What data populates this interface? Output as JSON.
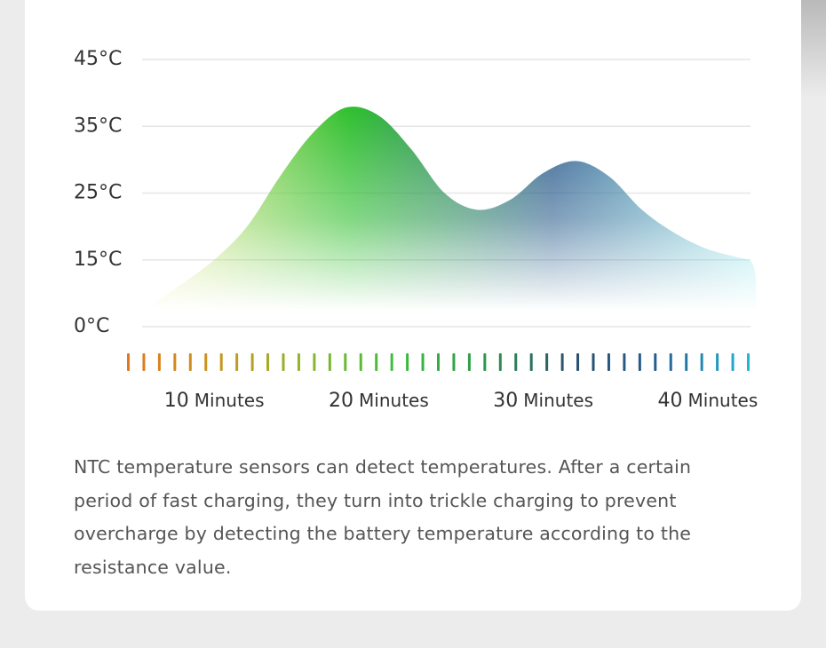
{
  "chart_data": {
    "type": "area",
    "x": [
      6,
      8,
      10,
      12,
      14,
      16,
      18,
      20,
      22,
      24,
      26,
      28,
      30,
      32,
      34,
      36,
      38,
      40,
      42.5
    ],
    "series": [
      {
        "color": [
          "#f3ea86",
          "#2fbf2f",
          "#2f5f8f",
          "#8fe6ea"
        ],
        "values": [
          4.5,
          9.5,
          15,
          20,
          27.5,
          34,
          37.8,
          36.6,
          31.5,
          25,
          22.5,
          24,
          28,
          29.8,
          27.5,
          22.5,
          19,
          16.6,
          15
        ]
      }
    ],
    "xlim": [
      4,
      44
    ],
    "xticks": [
      10,
      20,
      30,
      40
    ],
    "x_unit": "Minutes",
    "ylim": [
      0,
      45
    ],
    "yticks": [
      {
        "value": 0,
        "label": "0°C"
      },
      {
        "value": 15,
        "label": "15°C"
      },
      {
        "value": 25,
        "label": "25°C"
      },
      {
        "value": 35,
        "label": "35°C"
      },
      {
        "value": 45,
        "label": "45°C"
      }
    ],
    "grid": true
  },
  "description": "NTC temperature sensors can detect temperatures. After a certain period of fast charging, they turn into trickle charging to prevent overcharge by detecting the battery temperature according to the resistance value."
}
